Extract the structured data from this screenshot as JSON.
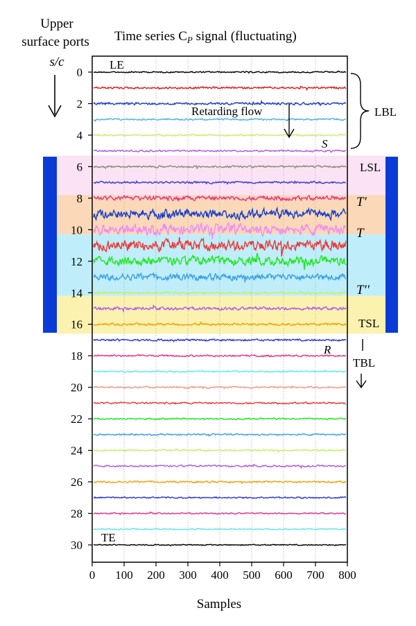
{
  "chart_data": {
    "type": "line",
    "title": "Time series C",
    "title_sub": "P",
    "title_rest": " signal (fluctuating)",
    "ylabel_lines": [
      "Upper",
      "surface ports",
      "s/c"
    ],
    "xlabel": "Samples",
    "xlim": [
      0,
      800
    ],
    "xticks": [
      0,
      100,
      200,
      300,
      400,
      500,
      600,
      700,
      800
    ],
    "ylim": [
      0,
      31
    ],
    "yticks": [
      0,
      2,
      4,
      6,
      8,
      10,
      12,
      14,
      16,
      18,
      20,
      22,
      24,
      26,
      28,
      30
    ],
    "grid": true,
    "series": [
      {
        "port": 0,
        "color": "#000000",
        "amplitude": 0.06
      },
      {
        "port": 1,
        "color": "#e31a1c",
        "amplitude": 0.09
      },
      {
        "port": 2,
        "color": "#1f3fd0",
        "amplitude": 0.11
      },
      {
        "port": 3,
        "color": "#4fb3e8",
        "amplitude": 0.08
      },
      {
        "port": 4,
        "color": "#c6f06a",
        "amplitude": 0.07
      },
      {
        "port": 5,
        "color": "#b45ae6",
        "amplitude": 0.08
      },
      {
        "port": 6,
        "color": "#8c8c78",
        "amplitude": 0.09
      },
      {
        "port": 7,
        "color": "#3a3ad8",
        "amplitude": 0.09
      },
      {
        "port": 8,
        "color": "#e8338a",
        "amplitude": 0.2
      },
      {
        "port": 9,
        "color": "#1a3fc8",
        "amplitude": 0.45
      },
      {
        "port": 10,
        "color": "#f08cf0",
        "amplitude": 0.5
      },
      {
        "port": 11,
        "color": "#ee3a3a",
        "amplitude": 0.5
      },
      {
        "port": 12,
        "color": "#1ee81e",
        "amplitude": 0.4
      },
      {
        "port": 13,
        "color": "#3aa0e8",
        "amplitude": 0.3
      },
      {
        "port": 14,
        "color": "#c6f06a",
        "amplitude": 0.12
      },
      {
        "port": 15,
        "color": "#b45ae6",
        "amplitude": 0.14
      },
      {
        "port": 16,
        "color": "#f5a20a",
        "amplitude": 0.1
      },
      {
        "port": 17,
        "color": "#2a3ad8",
        "amplitude": 0.09
      },
      {
        "port": 18,
        "color": "#e8338a",
        "amplitude": 0.08
      },
      {
        "port": 19,
        "color": "#5ee8e8",
        "amplitude": 0.06
      },
      {
        "port": 20,
        "color": "#f49a8a",
        "amplitude": 0.08
      },
      {
        "port": 21,
        "color": "#ee3a3a",
        "amplitude": 0.08
      },
      {
        "port": 22,
        "color": "#1ee81e",
        "amplitude": 0.07
      },
      {
        "port": 23,
        "color": "#3aa0e8",
        "amplitude": 0.07
      },
      {
        "port": 24,
        "color": "#c6f06a",
        "amplitude": 0.07
      },
      {
        "port": 25,
        "color": "#b45ae6",
        "amplitude": 0.08
      },
      {
        "port": 26,
        "color": "#f5a20a",
        "amplitude": 0.08
      },
      {
        "port": 27,
        "color": "#2a3ad8",
        "amplitude": 0.07
      },
      {
        "port": 28,
        "color": "#e8338a",
        "amplitude": 0.06
      },
      {
        "port": 29,
        "color": "#5ee8e8",
        "amplitude": 0.05
      },
      {
        "port": 30,
        "color": "#000000",
        "amplitude": 0.05
      }
    ],
    "bands": [
      {
        "label": "LSL",
        "from": 5.6,
        "to": 7.8,
        "color": "#fbe3f5"
      },
      {
        "label": "T′",
        "from": 7.8,
        "to": 10.2,
        "color": "#fbd9b8"
      },
      {
        "label": "T",
        "from": 10.2,
        "to": 10.2,
        "color": "#fbd9b8"
      },
      {
        "label": "T′′",
        "from": 10.2,
        "to": 14.2,
        "color": "#bfeefa"
      },
      {
        "label": "TSL",
        "from": 14.2,
        "to": 16.6,
        "color": "#fbf2b0"
      }
    ],
    "side_bar_color": "#0b3bd6",
    "annotations": {
      "le": "LE",
      "te": "TE",
      "retarding_flow": "Retarding flow",
      "s": "S",
      "r": "R",
      "lbl": "LBL",
      "tbl": "TBL",
      "lsl": "LSL",
      "t_prime": "T′",
      "t": "T",
      "t_dprime": "T′′",
      "tsl": "TSL"
    }
  }
}
